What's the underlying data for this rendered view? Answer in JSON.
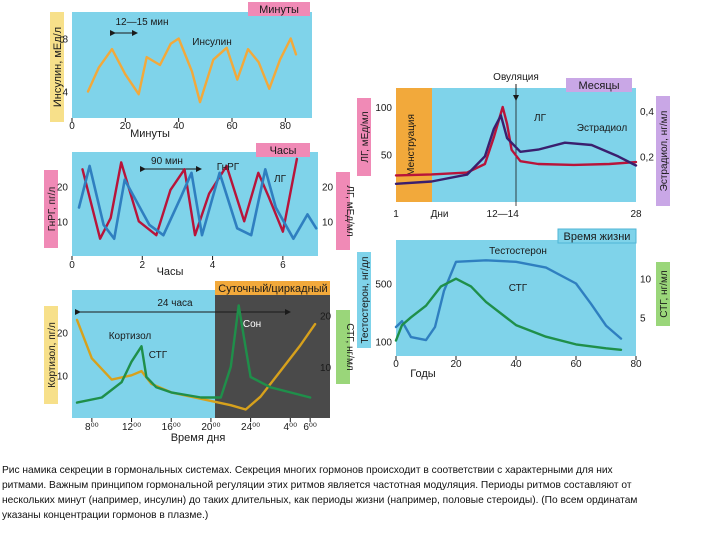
{
  "colors": {
    "panel": "#7fd3ea",
    "panel_dark": "#4fb6d6",
    "pink": "#f08ab6",
    "yellow": "#f7e08a",
    "orange": "#f2a93b",
    "red": "#b8143a",
    "blue": "#2f7fc0",
    "green": "#1f8f4a",
    "olive": "#d7a11c",
    "navy": "#3a1f6e",
    "dark": "#4a4a4a"
  },
  "chart_data": [
    {
      "type": "line",
      "id": "insulin",
      "title": "Минуты",
      "ylabel": "Инсулин, мЕд/л",
      "xlabel": "Минуты",
      "xlim": [
        0,
        90
      ],
      "ylim": [
        2,
        10
      ],
      "xticks": [
        "0",
        "20",
        "40",
        "60",
        "80"
      ],
      "yticks": [
        "4",
        "8"
      ],
      "annotation": "12—15 мин",
      "series": [
        {
          "name": "Инсулин",
          "x": [
            6,
            10,
            15,
            20,
            25,
            28,
            33,
            37,
            40,
            45,
            48,
            53,
            58,
            62,
            66,
            70,
            74,
            78,
            82,
            84
          ],
          "y": [
            4,
            5.8,
            7.2,
            5.3,
            3.8,
            6.6,
            6.0,
            7.6,
            8.0,
            5.5,
            3.2,
            6.4,
            7.3,
            4.9,
            7.2,
            6.2,
            4.2,
            6.4,
            8.0,
            6.8
          ]
        }
      ]
    },
    {
      "type": "line",
      "id": "gnrh-lh",
      "title": "Часы",
      "ylabel": "ГнРГ, пг/л",
      "y2label": "ЛГ, мЕд/мл",
      "xlabel": "Часы",
      "xlim": [
        0,
        7
      ],
      "ylim": [
        0,
        30
      ],
      "y2lim": [
        0,
        30
      ],
      "xticks": [
        "0",
        "2",
        "4",
        "6"
      ],
      "yticks": [
        "10",
        "20"
      ],
      "y2ticks": [
        "10",
        "20"
      ],
      "annotation": "90 мин",
      "series": [
        {
          "name": "ГнРГ",
          "x": [
            0.2,
            0.5,
            0.9,
            1.2,
            1.5,
            2.2,
            2.6,
            3.1,
            3.4,
            3.7,
            4.2,
            4.7,
            5.1,
            5.5,
            5.8,
            6.3,
            6.7,
            6.95
          ],
          "y": [
            14,
            26,
            9,
            5,
            22,
            9,
            6,
            17,
            24,
            6,
            24,
            8,
            6,
            25,
            14,
            5,
            12,
            8
          ]
        },
        {
          "name": "ЛГ",
          "x": [
            0.3,
            0.8,
            1.1,
            1.4,
            1.9,
            2.4,
            2.8,
            3.2,
            3.5,
            3.9,
            4.4,
            4.9,
            5.3,
            5.6,
            6.0,
            6.4
          ],
          "y": [
            25,
            5,
            11,
            27,
            10,
            6,
            19,
            25,
            6,
            18,
            26,
            10,
            24,
            17,
            7,
            28
          ]
        }
      ]
    },
    {
      "type": "line",
      "id": "cortisol-gh",
      "title": "Суточный/циркадный",
      "ylabel": "Кортизол, пг/л",
      "y2label": "СТГ, нг/мл",
      "xlabel": "Время дня",
      "xlim": [
        6,
        32
      ],
      "ylim": [
        0,
        30
      ],
      "y2lim": [
        0,
        25
      ],
      "xticks": [
        "8⁰⁰",
        "12⁰⁰",
        "16⁰⁰",
        "20⁰⁰",
        "24⁰⁰",
        "4⁰⁰",
        "6⁰⁰"
      ],
      "yticks": [
        "10",
        "20"
      ],
      "y2ticks": [
        "10",
        "20"
      ],
      "annotation": "24 часа",
      "shaded_label": "Сон",
      "series": [
        {
          "name": "Кортизол",
          "x": [
            6.5,
            8,
            10,
            12,
            13,
            14,
            16,
            18,
            20,
            22,
            23.5,
            25,
            27,
            29,
            30.5
          ],
          "y": [
            23,
            14,
            9,
            10,
            11,
            8,
            6,
            5,
            4,
            3,
            2,
            5,
            11,
            17,
            22
          ]
        },
        {
          "name": "СТГ",
          "x": [
            6.5,
            9,
            11,
            12,
            13,
            13.5,
            14.5,
            16,
            19,
            21,
            22,
            22.8,
            23.3,
            24,
            26,
            28,
            30
          ],
          "y": [
            3,
            4,
            7,
            11,
            14,
            8,
            6,
            5,
            4,
            4,
            10,
            22,
            16,
            8,
            6,
            5,
            4
          ]
        }
      ]
    },
    {
      "type": "line",
      "id": "menstrual",
      "title": "Месяцы",
      "ylabel": "ЛГ, мЕд/мл",
      "y2label": "Эстрадиол, нг/мл",
      "xlim": [
        1,
        28
      ],
      "ylim": [
        0,
        120
      ],
      "y2lim": [
        0,
        0.5
      ],
      "xticks": [
        "1",
        "Дни",
        "12—14",
        "28"
      ],
      "yticks": [
        "50",
        "100"
      ],
      "y2ticks": [
        "0,2",
        "0,4"
      ],
      "phase_label": "Менструация",
      "marker_label": "Овуляция",
      "series": [
        {
          "name": "ЛГ",
          "x": [
            1,
            5,
            9,
            11,
            12,
            13,
            13.5,
            14,
            15,
            17,
            21,
            25,
            28
          ],
          "y": [
            28,
            29,
            31,
            40,
            68,
            100,
            82,
            55,
            43,
            40,
            39,
            40,
            42
          ]
        },
        {
          "name": "Эстрадиол",
          "x": [
            1,
            5,
            9,
            11,
            12,
            12.8,
            13.5,
            15,
            17,
            20,
            23,
            26,
            28
          ],
          "y": [
            0.08,
            0.09,
            0.12,
            0.2,
            0.32,
            0.38,
            0.28,
            0.22,
            0.23,
            0.26,
            0.25,
            0.2,
            0.16
          ]
        }
      ]
    },
    {
      "type": "line",
      "id": "lifespan",
      "title": "Время жизни",
      "ylabel": "Тестостерон, нг/дл",
      "y2label": "СТГ, нг/мл",
      "xlabel": "Годы",
      "xlim": [
        0,
        80
      ],
      "ylim": [
        0,
        800
      ],
      "y2lim": [
        0,
        15
      ],
      "xticks": [
        "0",
        "20",
        "40",
        "60",
        "80"
      ],
      "yticks": [
        "100",
        "500"
      ],
      "y2ticks": [
        "5",
        "10"
      ],
      "series": [
        {
          "name": "Тестостерон",
          "x": [
            0,
            2,
            5,
            10,
            13,
            16,
            20,
            30,
            40,
            50,
            60,
            65,
            70,
            75
          ],
          "y": [
            200,
            240,
            130,
            110,
            200,
            450,
            650,
            660,
            650,
            610,
            500,
            360,
            210,
            120
          ]
        },
        {
          "name": "СТГ",
          "x": [
            0,
            2,
            5,
            10,
            15,
            20,
            25,
            30,
            40,
            50,
            60,
            70,
            75
          ],
          "y": [
            2,
            4,
            5,
            6.5,
            9,
            10,
            9,
            7,
            4,
            2.5,
            1.5,
            1,
            0.8
          ]
        }
      ]
    }
  ],
  "caption": {
    "line1": "Рис          намика секреции в гормональных системах. Секреция многих гормонов происходит в соответствии с характерными для них",
    "line2": "ритмами. Важным принципом гормональной регуляции этих ритмов является частотная модуляция. Периоды ритмов составляют от",
    "line3": "нескольких минут (например, инсулин) до таких длительных, как периоды жизни (например, половые стероиды). (По всем ординатам",
    "line4": "указаны концентрации гормонов в плазме.)"
  }
}
